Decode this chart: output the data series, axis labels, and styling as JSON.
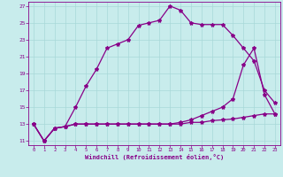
{
  "background_color": "#c8ecec",
  "grid_color": "#a8d8d8",
  "line_color": "#880088",
  "xlabel": "Windchill (Refroidissement éolien,°C)",
  "xlim": [
    -0.5,
    23.5
  ],
  "ylim": [
    10.5,
    27.5
  ],
  "xticks": [
    0,
    1,
    2,
    3,
    4,
    5,
    6,
    7,
    8,
    9,
    10,
    11,
    12,
    13,
    14,
    15,
    16,
    17,
    18,
    19,
    20,
    21,
    22,
    23
  ],
  "yticks": [
    11,
    13,
    15,
    17,
    19,
    21,
    23,
    25,
    27
  ],
  "line1_x": [
    0,
    1,
    2,
    3,
    4,
    5,
    6,
    7,
    8,
    9,
    10,
    11,
    12,
    13,
    14,
    15,
    16,
    17,
    18,
    19,
    20,
    21,
    22,
    23
  ],
  "line1_y": [
    13,
    11,
    12.5,
    12.7,
    15,
    17.5,
    19.5,
    22,
    22.5,
    23,
    24.7,
    25,
    25.3,
    27,
    26.5,
    25,
    24.8,
    24.8,
    24.8,
    23.5,
    22,
    20.5,
    17,
    15.5
  ],
  "line2_x": [
    0,
    1,
    2,
    3,
    4,
    5,
    6,
    7,
    8,
    9,
    10,
    11,
    12,
    13,
    14,
    15,
    16,
    17,
    18,
    19,
    20,
    21,
    22,
    23
  ],
  "line2_y": [
    13,
    11,
    12.5,
    12.7,
    13,
    13,
    13,
    13,
    13,
    13,
    13,
    13,
    13,
    13,
    13.2,
    13.5,
    14,
    14.5,
    15,
    16,
    20,
    22,
    16.5,
    14.2
  ],
  "line3_x": [
    0,
    1,
    2,
    3,
    4,
    5,
    6,
    7,
    8,
    9,
    10,
    11,
    12,
    13,
    14,
    15,
    16,
    17,
    18,
    19,
    20,
    21,
    22,
    23
  ],
  "line3_y": [
    13,
    11,
    12.5,
    12.7,
    13,
    13,
    13,
    13,
    13,
    13,
    13,
    13,
    13,
    13,
    13,
    13.2,
    13.2,
    13.4,
    13.5,
    13.6,
    13.8,
    14,
    14.2,
    14.2
  ],
  "marker": "*",
  "markersize": 3.0,
  "linewidth": 0.9
}
